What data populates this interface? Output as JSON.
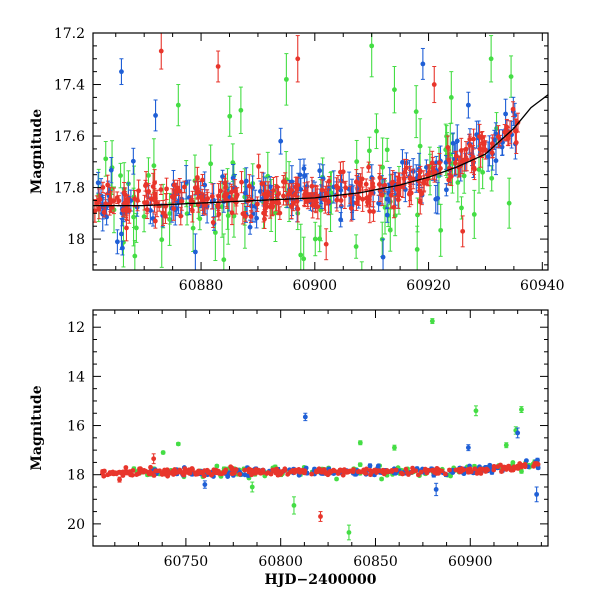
{
  "chart_data": [
    {
      "type": "scatter",
      "panel": "top",
      "title": "",
      "xlabel": "",
      "ylabel": "Magnitude",
      "xlim": [
        60861,
        60941
      ],
      "ylim": [
        18.12,
        17.2
      ],
      "y_inverted": true,
      "xticks": [
        60880,
        60900,
        60920,
        60940
      ],
      "yticks": [
        17.2,
        17.4,
        17.6,
        17.8,
        18
      ],
      "ytick_labels": [
        "17.2",
        "17.4",
        "17.6",
        "17.8",
        "18"
      ],
      "grid": false,
      "legend": "none",
      "colors": {
        "blue": "#1f5fd6",
        "red": "#e8352b",
        "green": "#44dd44",
        "model": "#000000"
      },
      "model_curve": {
        "x": [
          60861,
          60870,
          60880,
          60890,
          60900,
          60908,
          60915,
          60920,
          60925,
          60930,
          60935,
          60938,
          60941
        ],
        "y": [
          17.87,
          17.87,
          17.86,
          17.85,
          17.84,
          17.82,
          17.79,
          17.76,
          17.72,
          17.67,
          17.57,
          17.49,
          17.44
        ]
      },
      "trend": {
        "x": [
          60861,
          60880,
          60900,
          60915,
          60925,
          60930,
          60936
        ],
        "y": [
          17.86,
          17.85,
          17.84,
          17.8,
          17.7,
          17.63,
          17.57
        ]
      },
      "series": [
        {
          "color": "blue",
          "count": 170,
          "scatter": 0.05,
          "err": 0.045,
          "seed": 11
        },
        {
          "color": "red",
          "count": 290,
          "scatter": 0.035,
          "err": 0.035,
          "seed": 23
        },
        {
          "color": "green",
          "count": 90,
          "scatter": 0.13,
          "err": 0.08,
          "seed": 37
        }
      ],
      "outliers": [
        {
          "color": "blue",
          "x": 60866,
          "y": 17.35,
          "err": 0.05
        },
        {
          "color": "blue",
          "x": 60872,
          "y": 17.52,
          "err": 0.06
        },
        {
          "color": "red",
          "x": 60873,
          "y": 17.27,
          "err": 0.07
        },
        {
          "color": "green",
          "x": 60876,
          "y": 17.48,
          "err": 0.08
        },
        {
          "color": "red",
          "x": 60883,
          "y": 17.33,
          "err": 0.06
        },
        {
          "color": "green",
          "x": 60887,
          "y": 17.5,
          "err": 0.09
        },
        {
          "color": "blue",
          "x": 60894,
          "y": 17.62,
          "err": 0.05
        },
        {
          "color": "green",
          "x": 60895,
          "y": 17.38,
          "err": 0.1
        },
        {
          "color": "red",
          "x": 60897,
          "y": 17.3,
          "err": 0.09
        },
        {
          "color": "green",
          "x": 60910,
          "y": 17.25,
          "err": 0.12
        },
        {
          "color": "green",
          "x": 60914,
          "y": 17.42,
          "err": 0.09
        },
        {
          "color": "blue",
          "x": 60919,
          "y": 17.32,
          "err": 0.06
        },
        {
          "color": "red",
          "x": 60921,
          "y": 17.4,
          "err": 0.07
        },
        {
          "color": "green",
          "x": 60924,
          "y": 17.45,
          "err": 0.1
        },
        {
          "color": "blue",
          "x": 60927,
          "y": 17.48,
          "err": 0.05
        },
        {
          "color": "green",
          "x": 60931,
          "y": 17.3,
          "err": 0.09
        },
        {
          "color": "blue",
          "x": 60866,
          "y": 17.98,
          "err": 0.06
        },
        {
          "color": "blue",
          "x": 60879,
          "y": 18.05,
          "err": 0.07
        },
        {
          "color": "green",
          "x": 60884,
          "y": 18.08,
          "err": 0.1
        },
        {
          "color": "red",
          "x": 60902,
          "y": 18.02,
          "err": 0.06
        },
        {
          "color": "blue",
          "x": 60912,
          "y": 18.07,
          "err": 0.07
        },
        {
          "color": "green",
          "x": 60918,
          "y": 18.04,
          "err": 0.09
        },
        {
          "color": "red",
          "x": 60926,
          "y": 17.97,
          "err": 0.06
        }
      ]
    },
    {
      "type": "scatter",
      "panel": "bottom",
      "title": "",
      "xlabel": "HJD−2400000",
      "ylabel": "Magnitude",
      "xlim": [
        60701,
        60941
      ],
      "ylim": [
        20.9,
        11.3
      ],
      "y_inverted": true,
      "xticks": [
        60750,
        60800,
        60850,
        60900
      ],
      "yticks": [
        12,
        14,
        16,
        18,
        20
      ],
      "ytick_labels": [
        "12",
        "14",
        "16",
        "18",
        "20"
      ],
      "grid": false,
      "legend": "none",
      "colors": {
        "blue": "#1f5fd6",
        "red": "#e8352b",
        "green": "#44dd44"
      },
      "trend": {
        "x": [
          60706,
          60800,
          60900,
          60925,
          60936
        ],
        "y": [
          17.9,
          17.88,
          17.84,
          17.7,
          17.55
        ]
      },
      "series": [
        {
          "color": "green",
          "count": 110,
          "scatter": 0.12,
          "err": 0.05,
          "seed": 41,
          "xmin": 60720
        },
        {
          "color": "blue",
          "count": 170,
          "scatter": 0.09,
          "err": 0.05,
          "seed": 53,
          "xmin": 60730
        },
        {
          "color": "red",
          "count": 330,
          "scatter": 0.06,
          "err": 0.04,
          "seed": 67,
          "xmin": 60706
        }
      ],
      "outliers": [
        {
          "color": "green",
          "x": 60880,
          "y": 11.75,
          "err": 0.1
        },
        {
          "color": "blue",
          "x": 60813,
          "y": 15.65,
          "err": 0.15
        },
        {
          "color": "green",
          "x": 60903,
          "y": 15.4,
          "err": 0.2
        },
        {
          "color": "green",
          "x": 60927,
          "y": 15.35,
          "err": 0.12
        },
        {
          "color": "blue",
          "x": 60925,
          "y": 16.3,
          "err": 0.2
        },
        {
          "color": "green",
          "x": 60924,
          "y": 16.2,
          "err": 0.15
        },
        {
          "color": "green",
          "x": 60746,
          "y": 16.75,
          "err": 0.06
        },
        {
          "color": "green",
          "x": 60842,
          "y": 16.7,
          "err": 0.08
        },
        {
          "color": "green",
          "x": 60860,
          "y": 16.9,
          "err": 0.1
        },
        {
          "color": "blue",
          "x": 60899,
          "y": 16.9,
          "err": 0.12
        },
        {
          "color": "green",
          "x": 60919,
          "y": 16.8,
          "err": 0.1
        },
        {
          "color": "green",
          "x": 60738,
          "y": 17.1,
          "err": 0.06
        },
        {
          "color": "red",
          "x": 60733,
          "y": 17.35,
          "err": 0.2
        },
        {
          "color": "green",
          "x": 60807,
          "y": 19.25,
          "err": 0.35
        },
        {
          "color": "red",
          "x": 60821,
          "y": 19.7,
          "err": 0.2
        },
        {
          "color": "green",
          "x": 60836,
          "y": 20.35,
          "err": 0.3
        },
        {
          "color": "blue",
          "x": 60935,
          "y": 18.8,
          "err": 0.3
        },
        {
          "color": "blue",
          "x": 60882,
          "y": 18.6,
          "err": 0.25
        },
        {
          "color": "green",
          "x": 60785,
          "y": 18.5,
          "err": 0.2
        },
        {
          "color": "blue",
          "x": 60760,
          "y": 18.4,
          "err": 0.15
        },
        {
          "color": "red",
          "x": 60715,
          "y": 18.2,
          "err": 0.1
        }
      ]
    }
  ]
}
